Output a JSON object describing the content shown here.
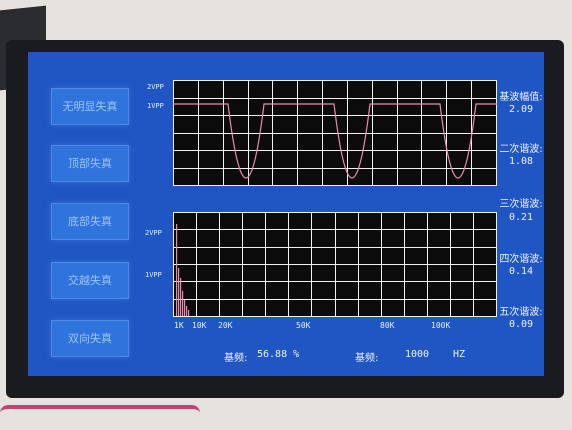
{
  "buttons": [
    {
      "label": "无明显失真"
    },
    {
      "label": "顶部失真"
    },
    {
      "label": "底部失真"
    },
    {
      "label": "交越失真"
    },
    {
      "label": "双向失真"
    }
  ],
  "waveform": {
    "y_labels": [
      "2VPP",
      "1VPP"
    ]
  },
  "spectrum": {
    "y_labels": [
      "2VPP",
      "1VPP"
    ],
    "x_labels": [
      "1K",
      "10K",
      "20K",
      "50K",
      "80K",
      "100K"
    ]
  },
  "readouts": [
    {
      "label": "基波幅值:",
      "value": "2.09"
    },
    {
      "label": "二次谐波:",
      "value": "1.08"
    },
    {
      "label": "三次谐波:",
      "value": "0.21"
    },
    {
      "label": "四次谐波:",
      "value": "0.14"
    },
    {
      "label": "五次谐波:",
      "value": "0.09"
    }
  ],
  "footer": {
    "distortion_label": "基频:",
    "distortion_value": "56.88 %",
    "freq_label": "基频:",
    "freq_value": "1000",
    "freq_unit": "HZ"
  },
  "colors": {
    "screen_bg": "#1f56c4",
    "button_bg": "#2f74dd",
    "trace": "#e98bb0",
    "grid": "#f2f2f2"
  }
}
